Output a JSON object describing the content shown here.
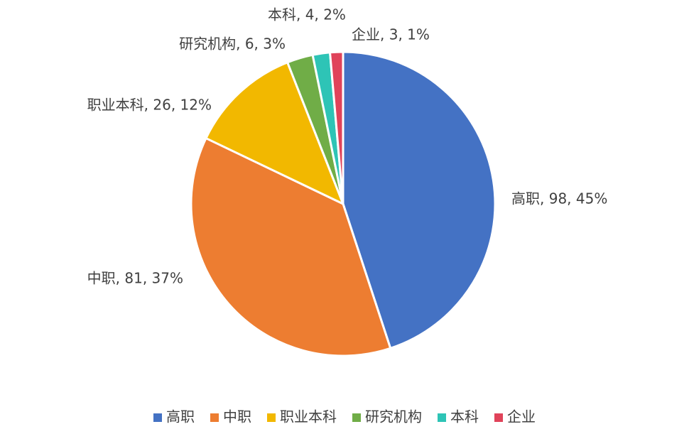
{
  "chart_data": {
    "type": "pie",
    "categories": [
      "高职",
      "中职",
      "职业本科",
      "研究机构",
      "本科",
      "企业"
    ],
    "values": [
      98,
      81,
      26,
      6,
      4,
      3
    ],
    "value_labels": [
      "高职, 98, 45%",
      "中职, 81, 37%",
      "职业本科, 26, 12%",
      "研究机构, 6, 3%",
      "本科, 4, 2%",
      "企业, 3, 1%"
    ],
    "colors": [
      "#4472c4",
      "#ed7d31",
      "#f2b800",
      "#70ad47",
      "#2ec4b6",
      "#e0435a"
    ],
    "legend": "bottom"
  }
}
